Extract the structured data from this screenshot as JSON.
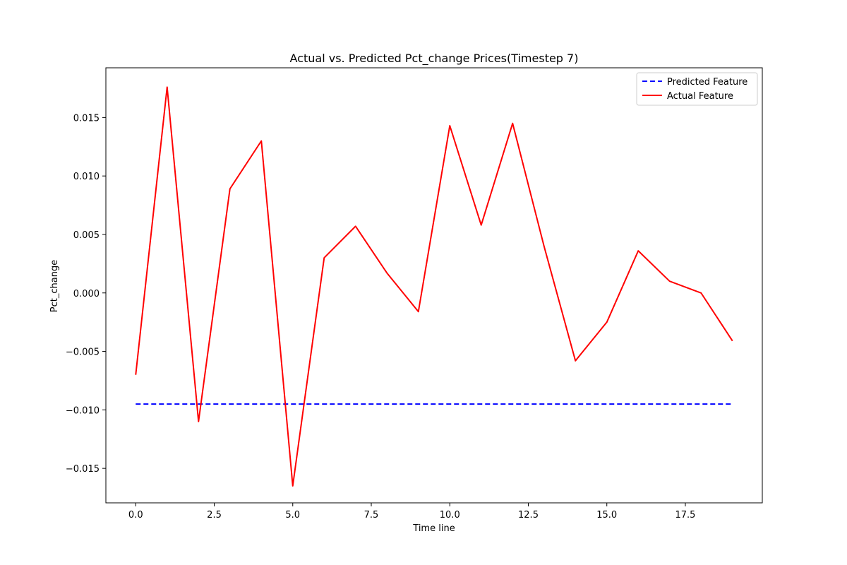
{
  "chart_data": {
    "type": "line",
    "title": "Actual vs. Predicted Pct_change Prices(Timestep 7)",
    "xlabel": "Time line",
    "ylabel": "Pct_change",
    "xlim": [
      -0.95,
      19.95
    ],
    "ylim": [
      -0.01795,
      0.01925
    ],
    "xticks": [
      0.0,
      2.5,
      5.0,
      7.5,
      10.0,
      12.5,
      15.0,
      17.5
    ],
    "xtick_labels": [
      "0.0",
      "2.5",
      "5.0",
      "7.5",
      "10.0",
      "12.5",
      "15.0",
      "17.5"
    ],
    "yticks": [
      -0.015,
      -0.01,
      -0.005,
      0.0,
      0.005,
      0.01,
      0.015
    ],
    "ytick_labels": [
      "−0.015",
      "−0.010",
      "−0.005",
      "0.000",
      "0.005",
      "0.010",
      "0.015"
    ],
    "grid": false,
    "legend_position": "top-right",
    "x": [
      0,
      1,
      2,
      3,
      4,
      5,
      6,
      7,
      8,
      9,
      10,
      11,
      12,
      13,
      14,
      15,
      16,
      17,
      18,
      19
    ],
    "series": [
      {
        "name": "Predicted Feature",
        "color": "#0000ff",
        "style": "dashed",
        "values": [
          -0.0095,
          -0.0095,
          -0.0095,
          -0.0095,
          -0.0095,
          -0.0095,
          -0.0095,
          -0.0095,
          -0.0095,
          -0.0095,
          -0.0095,
          -0.0095,
          -0.0095,
          -0.0095,
          -0.0095,
          -0.0095,
          -0.0095,
          -0.0095,
          -0.0095,
          -0.0095
        ]
      },
      {
        "name": "Actual Feature",
        "color": "#ff0000",
        "style": "solid",
        "values": [
          -0.007,
          0.0176,
          -0.011,
          0.0089,
          0.013,
          -0.0165,
          0.003,
          0.0057,
          0.0017,
          -0.0016,
          0.0143,
          0.0058,
          0.0145,
          0.004,
          -0.0058,
          -0.0025,
          0.0036,
          0.001,
          0.0,
          -0.0041
        ]
      }
    ]
  }
}
